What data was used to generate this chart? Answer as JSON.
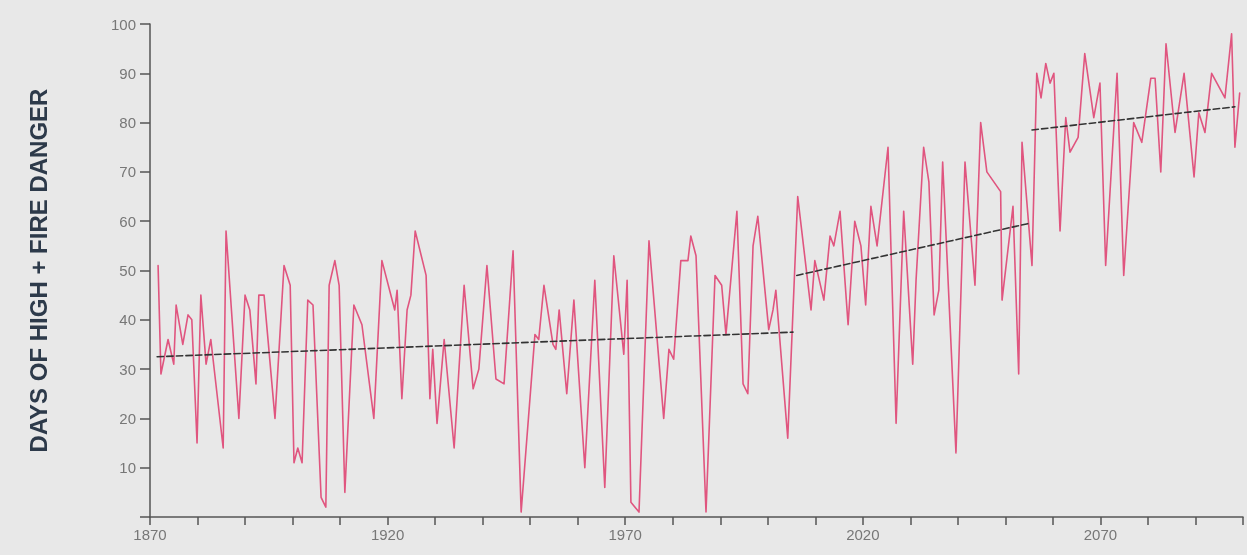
{
  "chart_data": {
    "type": "line",
    "ylabel": "DAYS OF HIGH + FIRE DANGER",
    "xlim": [
      1870,
      2100
    ],
    "ylim": [
      0,
      100
    ],
    "xticks": [
      1870,
      {
        "value": 1880,
        "label": null
      },
      {
        "value": 1890,
        "label": null
      },
      {
        "value": 1900,
        "label": null
      },
      {
        "value": 1910,
        "label": null
      },
      1920,
      {
        "value": 1930,
        "label": null
      },
      {
        "value": 1940,
        "label": null
      },
      {
        "value": 1950,
        "label": null
      },
      {
        "value": 1960,
        "label": null
      },
      1970,
      {
        "value": 1980,
        "label": null
      },
      {
        "value": 1990,
        "label": null
      },
      {
        "value": 2000,
        "label": null
      },
      {
        "value": 2010,
        "label": null
      },
      2020,
      {
        "value": 2030,
        "label": null
      },
      {
        "value": 2040,
        "label": null
      },
      {
        "value": 2050,
        "label": null
      },
      {
        "value": 2060,
        "label": null
      },
      2070,
      {
        "value": 2080,
        "label": null
      },
      {
        "value": 2090,
        "label": null
      },
      {
        "value": 2100,
        "label": null
      }
    ],
    "yticks": [
      {
        "value": 0,
        "label": null
      },
      10,
      20,
      30,
      40,
      50,
      60,
      70,
      80,
      90,
      100
    ],
    "grid": false,
    "marker": "none",
    "series": [
      {
        "color": "#e0557f",
        "line_style": "solid",
        "x": [
          1871.7,
          1872.3,
          1873.8,
          1875.0,
          1875.5,
          1876.9,
          1878.0,
          1878.8,
          1879.9,
          1880.7,
          1881.8,
          1882.8,
          1885.4,
          1886.0,
          1888.7,
          1890.0,
          1891.0,
          1892.3,
          1892.9,
          1894.0,
          1896.3,
          1898.2,
          1899.5,
          1900.3,
          1901.1,
          1902.0,
          1903.2,
          1904.3,
          1906.0,
          1907.0,
          1907.7,
          1908.9,
          1909.8,
          1911.0,
          1912.9,
          1914.6,
          1917.1,
          1918.8,
          1921.5,
          1922.0,
          1923.0,
          1924.1,
          1924.9,
          1925.8,
          1928.1,
          1928.9,
          1929.5,
          1930.4,
          1931.9,
          1934.0,
          1936.1,
          1938.0,
          1939.2,
          1940.9,
          1942.8,
          1944.5,
          1946.4,
          1948.1,
          1951.0,
          1951.8,
          1952.9,
          1954.8,
          1955.4,
          1956.1,
          1957.7,
          1959.2,
          1961.5,
          1963.6,
          1965.7,
          1967.6,
          1969.7,
          1970.4,
          1971.2,
          1972.9,
          1975.0,
          1978.1,
          1979.2,
          1980.2,
          1981.7,
          1983.2,
          1983.8,
          1984.9,
          1987.0,
          1988.9,
          1990.3,
          1991.2,
          1993.5,
          1994.8,
          1995.8,
          1996.9,
          1997.9,
          2000.2,
          2001.1,
          2001.7,
          2004.2,
          2006.3,
          2009.1,
          2009.9,
          2011.8,
          2013.1,
          2013.9,
          2015.2,
          2016.9,
          2018.3,
          2019.6,
          2020.6,
          2021.7,
          2023.0,
          2025.3,
          2027.0,
          2028.6,
          2030.5,
          2031.2,
          2032.8,
          2033.9,
          2035.0,
          2036.0,
          2036.8,
          2039.6,
          2041.5,
          2043.6,
          2044.8,
          2046.1,
          2049.0,
          2049.3,
          2051.6,
          2052.8,
          2053.5,
          2055.6,
          2056.6,
          2057.5,
          2058.5,
          2059.4,
          2060.2,
          2061.5,
          2062.7,
          2063.6,
          2065.3,
          2066.7,
          2068.6,
          2069.9,
          2071.1,
          2073.5,
          2074.9,
          2077.0,
          2078.7,
          2080.6,
          2081.5,
          2082.7,
          2083.8,
          2085.7,
          2087.6,
          2089.7,
          2090.7,
          2092.0,
          2093.4,
          2096.2,
          2097.6,
          2098.3,
          2099.3
        ],
        "values": [
          51,
          29,
          36,
          31,
          43,
          35,
          41,
          40,
          15,
          45,
          31,
          36,
          14,
          58,
          20,
          45,
          42,
          27,
          45,
          45,
          20,
          51,
          47,
          11,
          14,
          11,
          44,
          43,
          4,
          2,
          47,
          52,
          47,
          5,
          43,
          39,
          20,
          52,
          42,
          46,
          24,
          42,
          45,
          58,
          49,
          24,
          34,
          19,
          36,
          14,
          47,
          26,
          30,
          51,
          28,
          27,
          54,
          1,
          37,
          36,
          47,
          35,
          34,
          42,
          25,
          44,
          10,
          48,
          6,
          53,
          33,
          48,
          3,
          1,
          56,
          20,
          34,
          32,
          52,
          52,
          57,
          53,
          1,
          49,
          47,
          37,
          62,
          27,
          25,
          55,
          61,
          38,
          42,
          46,
          16,
          65,
          42,
          52,
          44,
          57,
          55,
          62,
          39,
          60,
          55,
          43,
          63,
          55,
          75,
          19,
          62,
          31,
          48,
          75,
          68,
          41,
          46,
          72,
          13,
          72,
          47,
          80,
          70,
          66,
          44,
          63,
          29,
          76,
          51,
          90,
          85,
          92,
          88,
          90,
          58,
          81,
          74,
          77,
          94,
          81,
          88,
          51,
          90,
          49,
          80,
          76,
          89,
          89,
          70,
          96,
          78,
          90,
          69,
          82,
          78,
          90,
          85,
          98,
          75,
          86
        ]
      },
      {
        "type": "line",
        "color": "#333333",
        "line_style": "dashed",
        "x": [
          1871.5,
          2005.3
        ],
        "values": [
          32.5,
          37.5
        ]
      },
      {
        "type": "line",
        "color": "#333333",
        "line_style": "dashed",
        "x": [
          2006.1,
          2054.7
        ],
        "values": [
          49,
          59.5
        ]
      },
      {
        "type": "line",
        "color": "#333333",
        "line_style": "dashed",
        "x": [
          2055.6,
          2098.3
        ],
        "values": [
          78.5,
          83.2
        ]
      }
    ]
  }
}
